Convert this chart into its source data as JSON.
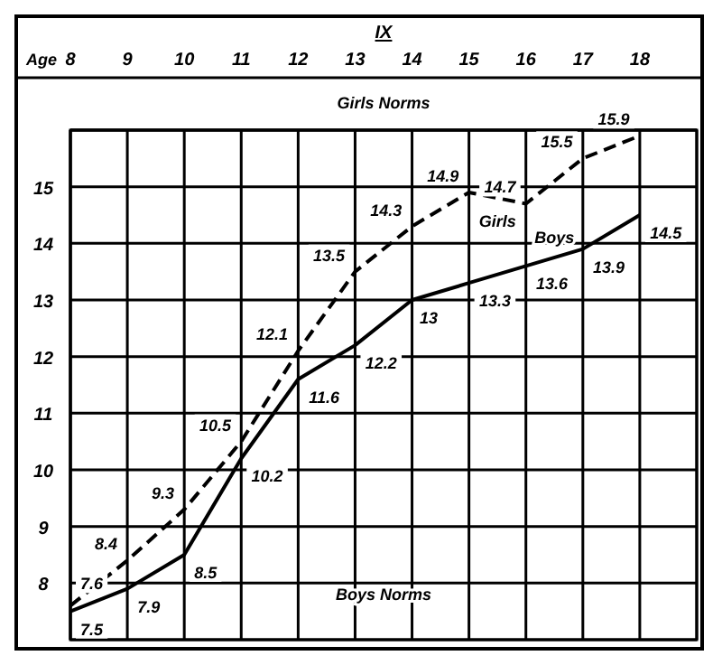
{
  "chart_data": {
    "type": "line",
    "title": "IX",
    "xlabel": "Age",
    "x": [
      8,
      9,
      10,
      11,
      12,
      13,
      14,
      15,
      16,
      17,
      18
    ],
    "series": [
      {
        "name": "Girls",
        "color": "#000000",
        "line_style": "dashed",
        "values": [
          7.6,
          8.4,
          9.3,
          10.5,
          12.1,
          13.5,
          14.3,
          14.9,
          14.7,
          15.5,
          15.9
        ]
      },
      {
        "name": "Boys",
        "color": "#000000",
        "line_style": "solid",
        "values": [
          7.5,
          7.9,
          8.5,
          10.2,
          11.6,
          12.2,
          13,
          13.3,
          13.6,
          13.9,
          14.5
        ]
      }
    ],
    "data_labels": true,
    "annotations": [
      "Girls Norms",
      "Boys Norms"
    ],
    "xlim": [
      8,
      19
    ],
    "xticks": [
      8,
      9,
      10,
      11,
      12,
      13,
      14,
      15,
      16,
      17,
      18,
      {
        "value": 19,
        "label": null
      }
    ],
    "ylim": [
      7,
      16
    ],
    "yticks": [
      8,
      9,
      10,
      11,
      12,
      13,
      14,
      15
    ],
    "grid": true,
    "legend": false,
    "marker": "none"
  }
}
